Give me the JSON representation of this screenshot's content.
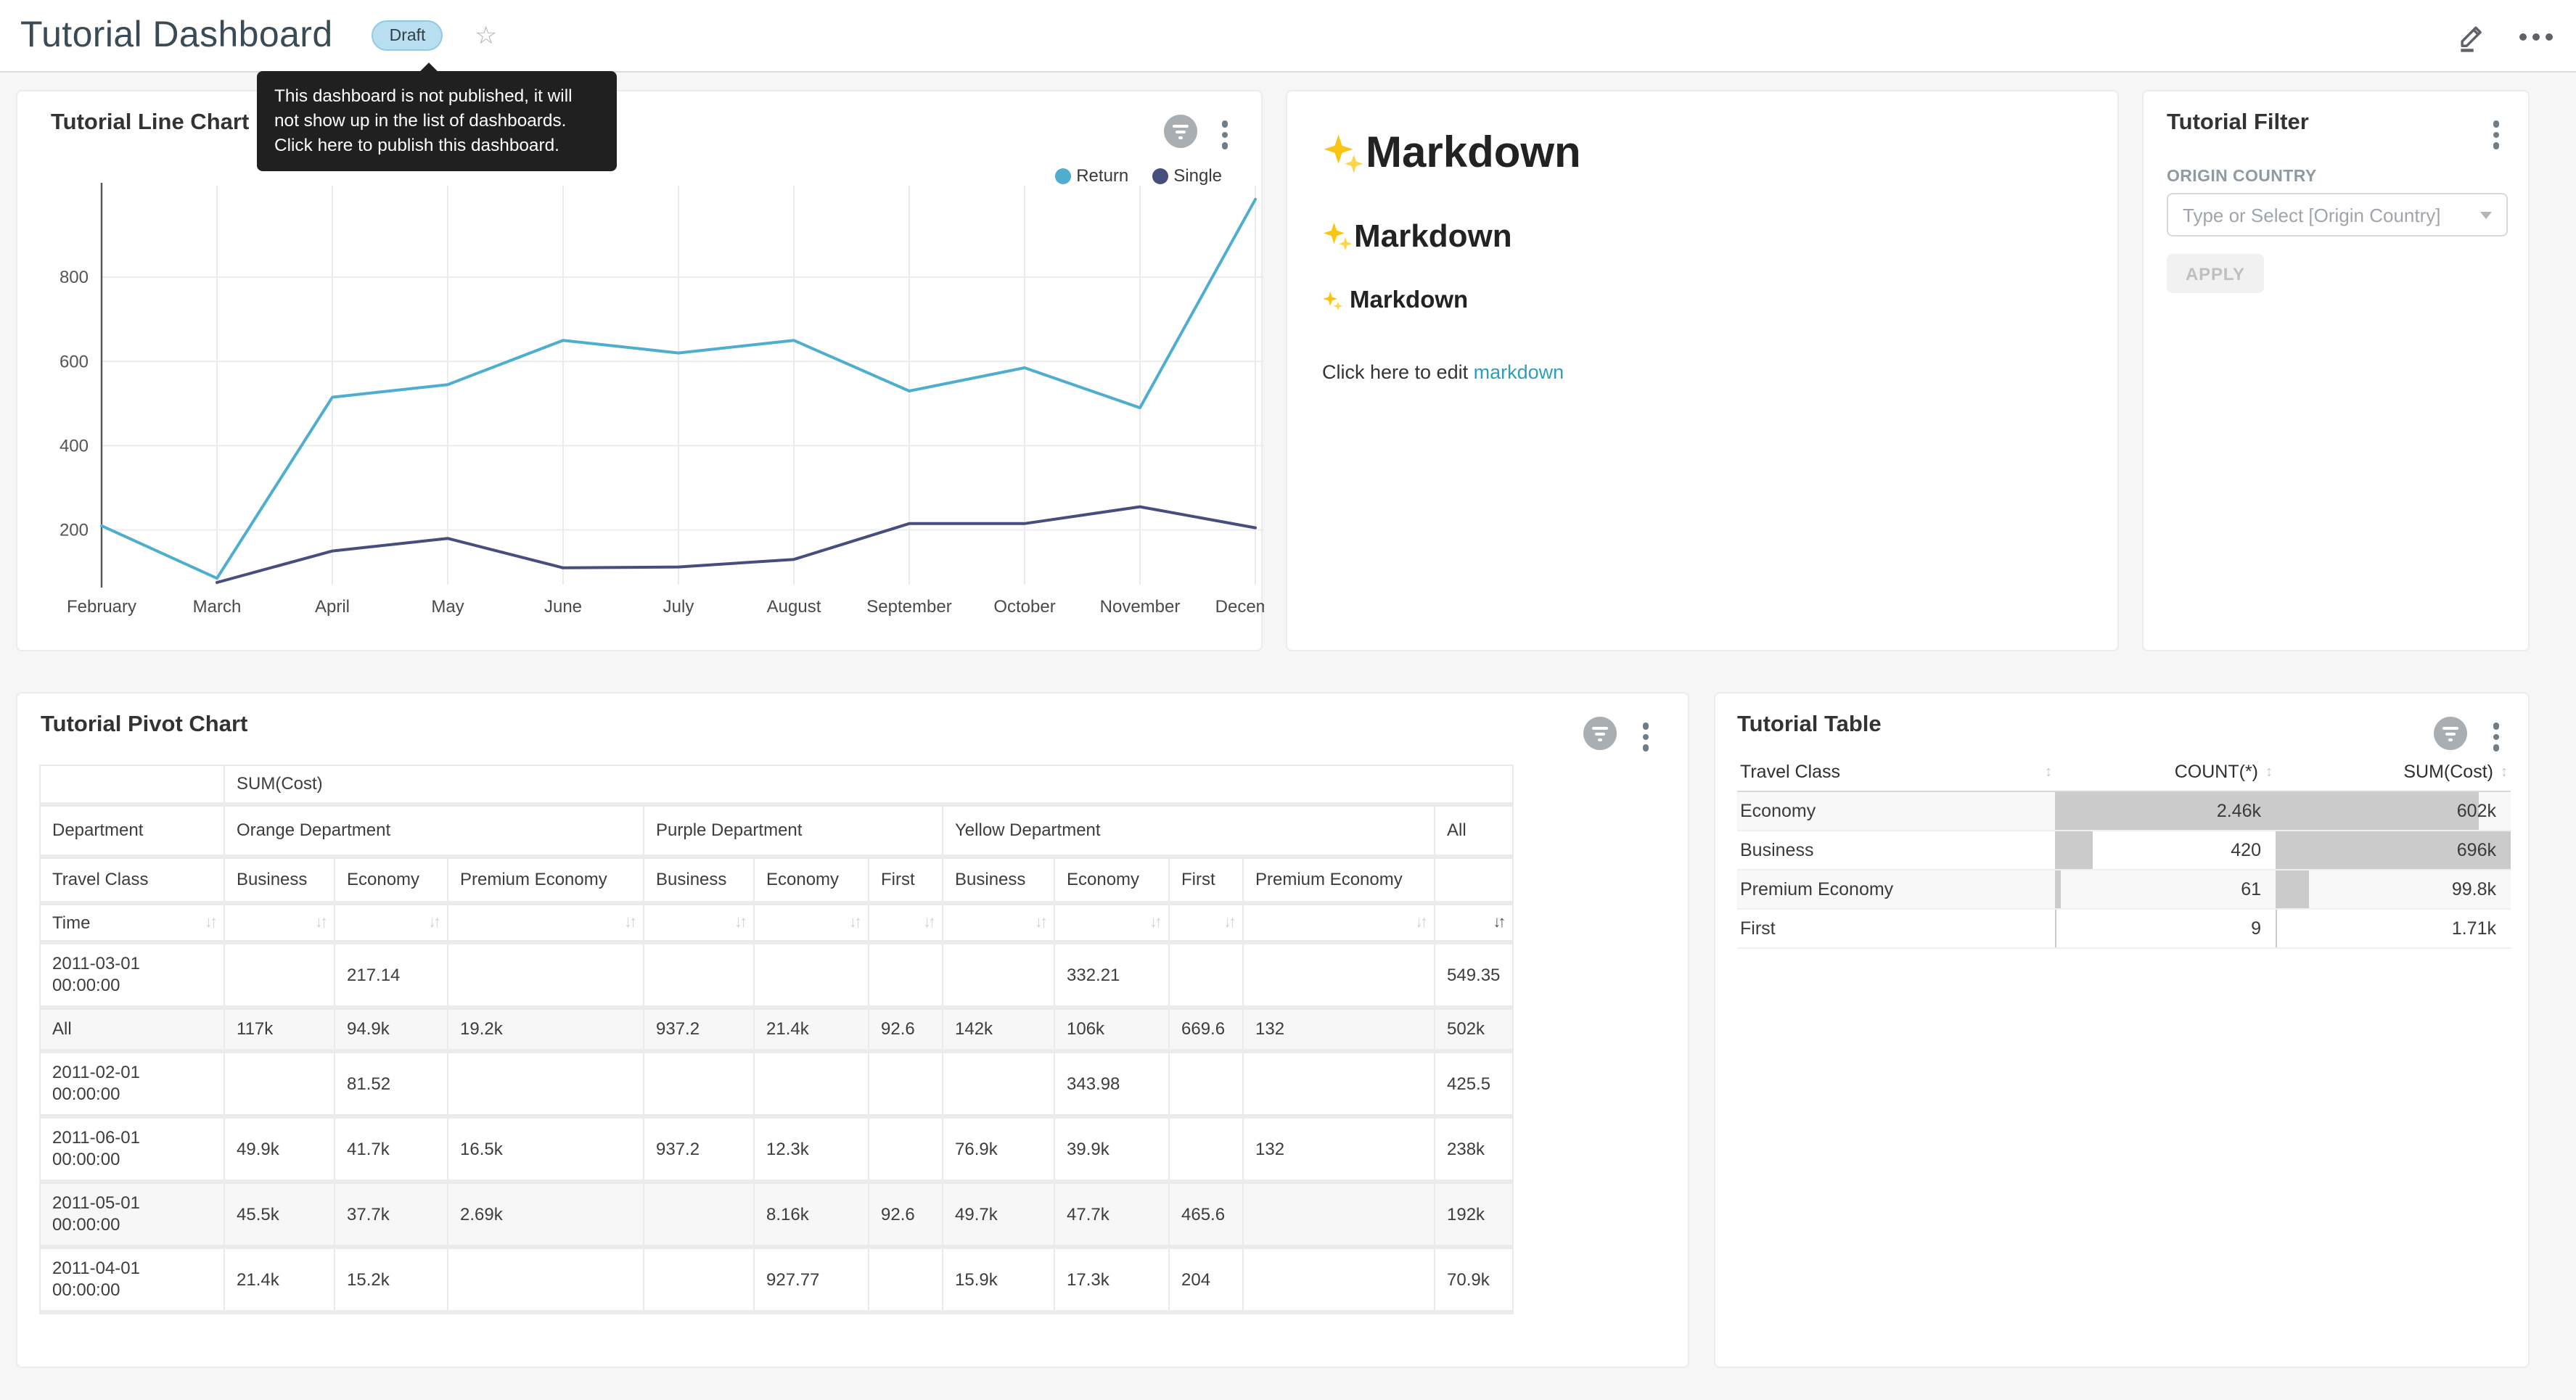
{
  "colors": {
    "series_return": "#4FADCE",
    "series_single": "#454E7C",
    "link": "#2D9EBF",
    "draft_badge_bg": "#B8DEF0",
    "table_bar": "#CBCBCB",
    "tooltip_bg": "#202020"
  },
  "icons": {
    "star": "☆",
    "kebab": "vertical-dots",
    "more": "horizontal-dots",
    "edit": "pencil",
    "filter_indicator": "funnel-lines",
    "sort_both": "↕",
    "sort_pair": "↓↑",
    "caret_down": "▾"
  },
  "header": {
    "title": "Tutorial Dashboard",
    "status_badge": "Draft",
    "tooltip_lines": [
      "This dashboard is not published, it will",
      "not show up in the list of dashboards.",
      "Click here to publish this dashboard."
    ]
  },
  "line_chart": {
    "title": "Tutorial Line Chart",
    "legend": [
      {
        "label": "Return",
        "color": "#4FADCE"
      },
      {
        "label": "Single",
        "color": "#454E7C"
      }
    ]
  },
  "chart_data": {
    "type": "line",
    "title": "Tutorial Line Chart",
    "categories": [
      "February",
      "March",
      "April",
      "May",
      "June",
      "July",
      "August",
      "September",
      "October",
      "November",
      "December"
    ],
    "series": [
      {
        "name": "Return",
        "color": "#4FADCE",
        "values": [
          210,
          85,
          515,
          545,
          650,
          620,
          650,
          530,
          585,
          490,
          985
        ]
      },
      {
        "name": "Single",
        "color": "#454E7C",
        "values": [
          null,
          75,
          150,
          180,
          110,
          112,
          130,
          215,
          215,
          255,
          205
        ]
      }
    ],
    "ylim": [
      70,
      1000
    ],
    "yticks": [
      200,
      400,
      600,
      800
    ],
    "grid": true,
    "legend_position": "top-right"
  },
  "markdown": {
    "h1": "Markdown",
    "h2": "Markdown",
    "h3": "Markdown",
    "paragraph_prefix": "Click here to edit ",
    "link_text": "markdown"
  },
  "filter": {
    "title": "Tutorial Filter",
    "field_label": "ORIGIN COUNTRY",
    "placeholder": "Type or Select [Origin Country]",
    "apply_label": "APPLY"
  },
  "pivot": {
    "title": "Tutorial Pivot Chart",
    "metric_header": "SUM(Cost)",
    "department_label": "Department",
    "travel_class_label": "Travel Class",
    "time_label": "Time",
    "groups": [
      {
        "label": "Orange Department",
        "span": 3
      },
      {
        "label": "Purple Department",
        "span": 3
      },
      {
        "label": "Yellow Department",
        "span": 4
      },
      {
        "label": "All",
        "span": 1
      }
    ],
    "columns": [
      "Business",
      "Economy",
      "Premium Economy",
      "Business",
      "Economy",
      "First",
      "Business",
      "Economy",
      "First",
      "Premium Economy",
      ""
    ],
    "rows": [
      {
        "label": "2011-03-01 00:00:00",
        "shaded": false,
        "values": [
          "",
          "217.14",
          "",
          "",
          "",
          "",
          "",
          "332.21",
          "",
          "",
          "549.35"
        ]
      },
      {
        "label": "All",
        "shaded": true,
        "values": [
          "117k",
          "94.9k",
          "19.2k",
          "937.2",
          "21.4k",
          "92.6",
          "142k",
          "106k",
          "669.6",
          "132",
          "502k"
        ]
      },
      {
        "label": "2011-02-01 00:00:00",
        "shaded": false,
        "values": [
          "",
          "81.52",
          "",
          "",
          "",
          "",
          "",
          "343.98",
          "",
          "",
          "425.5"
        ]
      },
      {
        "label": "2011-06-01 00:00:00",
        "shaded": false,
        "values": [
          "49.9k",
          "41.7k",
          "16.5k",
          "937.2",
          "12.3k",
          "",
          "76.9k",
          "39.9k",
          "",
          "132",
          "238k"
        ]
      },
      {
        "label": "2011-05-01 00:00:00",
        "shaded": true,
        "values": [
          "45.5k",
          "37.7k",
          "2.69k",
          "",
          "8.16k",
          "92.6",
          "49.7k",
          "47.7k",
          "465.6",
          "",
          "192k"
        ]
      },
      {
        "label": "2011-04-01 00:00:00",
        "shaded": false,
        "values": [
          "21.4k",
          "15.2k",
          "",
          "",
          "927.77",
          "",
          "15.9k",
          "17.3k",
          "204",
          "",
          "70.9k"
        ]
      }
    ]
  },
  "table": {
    "title": "Tutorial Table",
    "columns": [
      "Travel Class",
      "COUNT(*)",
      "SUM(Cost)"
    ],
    "rows": [
      {
        "travel_class": "Economy",
        "count_label": "2.46k",
        "count_value": 2460,
        "sum_label": "602k",
        "sum_value": 602000,
        "shaded": true
      },
      {
        "travel_class": "Business",
        "count_label": "420",
        "count_value": 420,
        "sum_label": "696k",
        "sum_value": 696000,
        "shaded": false
      },
      {
        "travel_class": "Premium Economy",
        "count_label": "61",
        "count_value": 61,
        "sum_label": "99.8k",
        "sum_value": 99800,
        "shaded": true
      },
      {
        "travel_class": "First",
        "count_label": "9",
        "count_value": 9,
        "sum_label": "1.71k",
        "sum_value": 1710,
        "shaded": false
      }
    ]
  }
}
